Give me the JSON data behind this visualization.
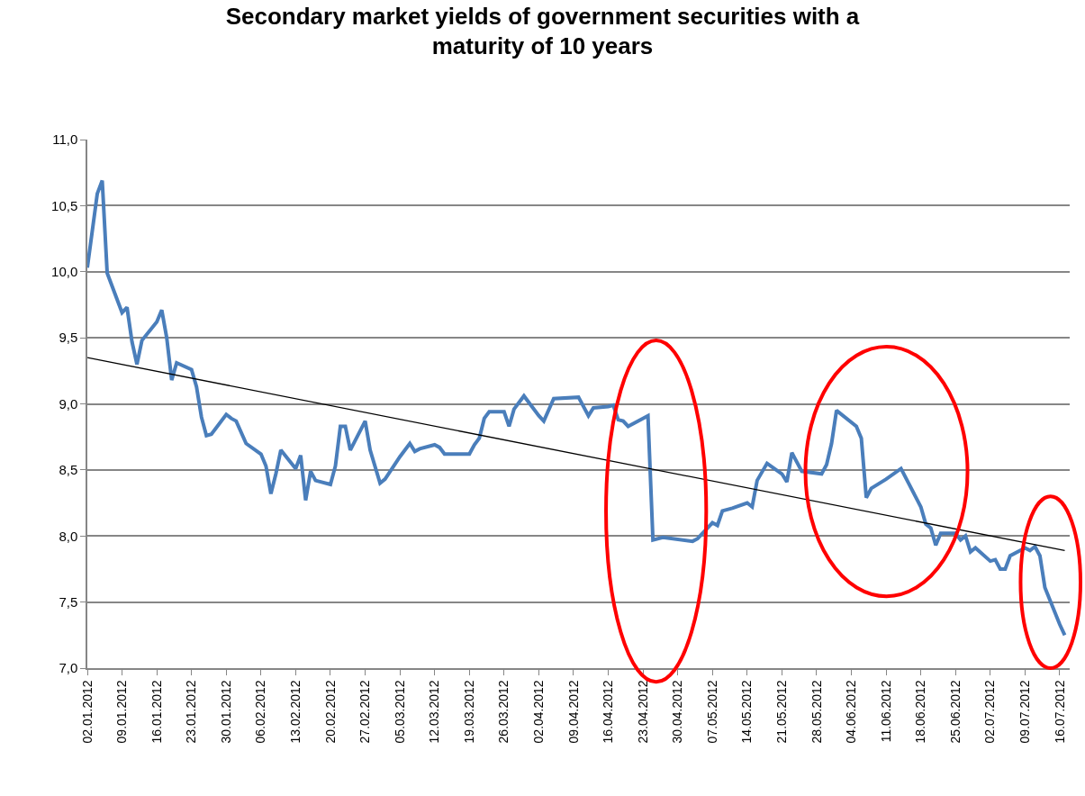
{
  "chart_data": {
    "type": "line",
    "title": "Secondary market yields of government securities with a maturity of 10 years",
    "xlim": [
      "2012-01-02",
      "2012-07-18"
    ],
    "xticks": [
      {
        "value": "2012-01-02",
        "label": "02.01.2012"
      },
      {
        "value": "2012-01-09",
        "label": "09.01.2012"
      },
      {
        "value": "2012-01-16",
        "label": "16.01.2012"
      },
      {
        "value": "2012-01-23",
        "label": "23.01.2012"
      },
      {
        "value": "2012-01-30",
        "label": "30.01.2012"
      },
      {
        "value": "2012-02-06",
        "label": "06.02.2012"
      },
      {
        "value": "2012-02-13",
        "label": "13.02.2012"
      },
      {
        "value": "2012-02-20",
        "label": "20.02.2012"
      },
      {
        "value": "2012-02-27",
        "label": "27.02.2012"
      },
      {
        "value": "2012-03-05",
        "label": "05.03.2012"
      },
      {
        "value": "2012-03-12",
        "label": "12.03.2012"
      },
      {
        "value": "2012-03-19",
        "label": "19.03.2012"
      },
      {
        "value": "2012-03-26",
        "label": "26.03.2012"
      },
      {
        "value": "2012-04-02",
        "label": "02.04.2012"
      },
      {
        "value": "2012-04-09",
        "label": "09.04.2012"
      },
      {
        "value": "2012-04-16",
        "label": "16.04.2012"
      },
      {
        "value": "2012-04-23",
        "label": "23.04.2012"
      },
      {
        "value": "2012-04-30",
        "label": "30.04.2012"
      },
      {
        "value": "2012-05-07",
        "label": "07.05.2012"
      },
      {
        "value": "2012-05-14",
        "label": "14.05.2012"
      },
      {
        "value": "2012-05-21",
        "label": "21.05.2012"
      },
      {
        "value": "2012-05-28",
        "label": "28.05.2012"
      },
      {
        "value": "2012-06-04",
        "label": "04.06.2012"
      },
      {
        "value": "2012-06-11",
        "label": "11.06.2012"
      },
      {
        "value": "2012-06-18",
        "label": "18.06.2012"
      },
      {
        "value": "2012-06-25",
        "label": "25.06.2012"
      },
      {
        "value": "2012-07-02",
        "label": "02.07.2012"
      },
      {
        "value": "2012-07-09",
        "label": "09.07.2012"
      },
      {
        "value": "2012-07-16",
        "label": "16.07.2012"
      }
    ],
    "ylim": [
      7,
      11
    ],
    "yticks": [
      {
        "value": 7,
        "label": "7,0"
      },
      {
        "value": 7.5,
        "label": "7,5"
      },
      {
        "value": 8,
        "label": "8,0"
      },
      {
        "value": 8.5,
        "label": "8,5"
      },
      {
        "value": 9,
        "label": "9,0"
      },
      {
        "value": 9.5,
        "label": "9,5"
      },
      {
        "value": 10,
        "label": "10,0"
      },
      {
        "value": 10.5,
        "label": "10,5"
      },
      {
        "value": 11,
        "label": "11,0"
      }
    ],
    "grid": "y",
    "marker": "none",
    "series": [
      {
        "color": "#4a7ebb",
        "x": [
          "2012-01-02",
          "2012-01-04",
          "2012-01-05",
          "2012-01-06",
          "2012-01-09",
          "2012-01-10",
          "2012-01-11",
          "2012-01-12",
          "2012-01-13",
          "2012-01-16",
          "2012-01-17",
          "2012-01-18",
          "2012-01-19",
          "2012-01-20",
          "2012-01-23",
          "2012-01-24",
          "2012-01-25",
          "2012-01-26",
          "2012-01-27",
          "2012-01-30",
          "2012-01-31",
          "2012-02-01",
          "2012-02-03",
          "2012-02-06",
          "2012-02-07",
          "2012-02-08",
          "2012-02-09",
          "2012-02-10",
          "2012-02-13",
          "2012-02-14",
          "2012-02-15",
          "2012-02-16",
          "2012-02-17",
          "2012-02-20",
          "2012-02-21",
          "2012-02-22",
          "2012-02-23",
          "2012-02-24",
          "2012-02-27",
          "2012-02-28",
          "2012-03-01",
          "2012-03-02",
          "2012-03-05",
          "2012-03-07",
          "2012-03-08",
          "2012-03-09",
          "2012-03-12",
          "2012-03-13",
          "2012-03-14",
          "2012-03-19",
          "2012-03-20",
          "2012-03-21",
          "2012-03-22",
          "2012-03-23",
          "2012-03-26",
          "2012-03-27",
          "2012-03-28",
          "2012-03-30",
          "2012-04-02",
          "2012-04-03",
          "2012-04-05",
          "2012-04-10",
          "2012-04-12",
          "2012-04-13",
          "2012-04-16",
          "2012-04-17",
          "2012-04-18",
          "2012-04-19",
          "2012-04-20",
          "2012-04-24",
          "2012-04-25",
          "2012-04-27",
          "2012-05-03",
          "2012-05-04",
          "2012-05-07",
          "2012-05-08",
          "2012-05-09",
          "2012-05-11",
          "2012-05-14",
          "2012-05-15",
          "2012-05-16",
          "2012-05-18",
          "2012-05-21",
          "2012-05-22",
          "2012-05-23",
          "2012-05-25",
          "2012-05-29",
          "2012-05-30",
          "2012-05-31",
          "2012-06-01",
          "2012-06-05",
          "2012-06-06",
          "2012-06-07",
          "2012-06-08",
          "2012-06-11",
          "2012-06-14",
          "2012-06-18",
          "2012-06-19",
          "2012-06-20",
          "2012-06-21",
          "2012-06-22",
          "2012-06-25",
          "2012-06-26",
          "2012-06-27",
          "2012-06-28",
          "2012-06-29",
          "2012-07-02",
          "2012-07-03",
          "2012-07-04",
          "2012-07-05",
          "2012-07-06",
          "2012-07-09",
          "2012-07-10",
          "2012-07-11",
          "2012-07-12",
          "2012-07-13",
          "2012-07-16",
          "2012-07-17"
        ],
        "values": [
          10.03,
          10.59,
          10.69,
          9.99,
          9.69,
          9.73,
          9.47,
          9.3,
          9.48,
          9.62,
          9.71,
          9.5,
          9.18,
          9.31,
          9.26,
          9.13,
          8.9,
          8.76,
          8.77,
          8.92,
          8.89,
          8.87,
          8.7,
          8.62,
          8.53,
          8.32,
          8.47,
          8.65,
          8.51,
          8.61,
          8.27,
          8.49,
          8.42,
          8.39,
          8.53,
          8.83,
          8.83,
          8.65,
          8.87,
          8.65,
          8.4,
          8.43,
          8.6,
          8.7,
          8.64,
          8.66,
          8.69,
          8.67,
          8.62,
          8.62,
          8.69,
          8.74,
          8.89,
          8.94,
          8.94,
          8.83,
          8.96,
          9.06,
          8.91,
          8.87,
          9.04,
          9.05,
          8.91,
          8.97,
          8.98,
          8.99,
          8.88,
          8.87,
          8.83,
          8.91,
          7.97,
          7.99,
          7.96,
          7.98,
          8.1,
          8.08,
          8.19,
          8.21,
          8.25,
          8.22,
          8.42,
          8.55,
          8.47,
          8.41,
          8.63,
          8.49,
          8.47,
          8.54,
          8.7,
          8.95,
          8.83,
          8.74,
          8.29,
          8.36,
          8.43,
          8.51,
          8.22,
          8.09,
          8.06,
          7.93,
          8.02,
          8.02,
          7.97,
          8.0,
          7.88,
          7.91,
          7.81,
          7.82,
          7.75,
          7.75,
          7.85,
          7.91,
          7.89,
          7.92,
          7.85,
          7.61,
          7.33,
          7.25
        ]
      },
      {
        "type": "line",
        "color": "#000000",
        "x": [
          "2012-01-02",
          "2012-07-17"
        ],
        "values": [
          9.35,
          7.89
        ]
      }
    ]
  }
}
